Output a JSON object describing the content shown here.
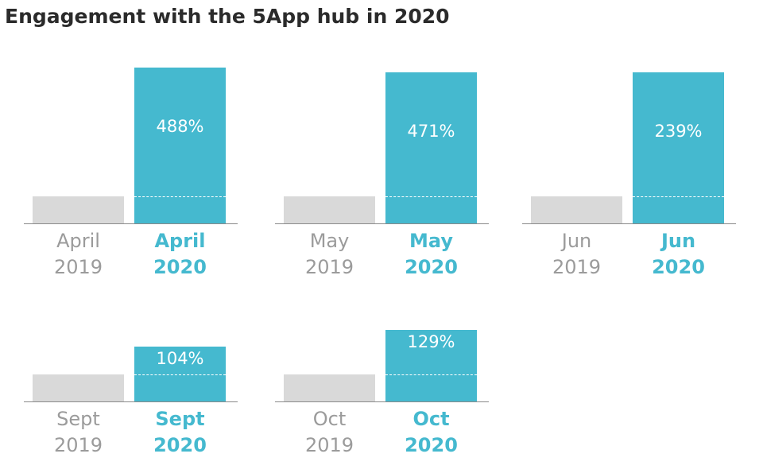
{
  "title": "Engagement with the 5App hub in 2020",
  "colors": {
    "previous": "#d9d9d9",
    "current": "#45b9cf",
    "title": "#2b2b2b",
    "prev_label": "#9b9b9b"
  },
  "chart_data": [
    {
      "type": "bar",
      "title": "",
      "categories": [
        "April 2019",
        "April 2020"
      ],
      "month": "April",
      "prev_year": "2019",
      "curr_year": "2020",
      "value_label": "488%",
      "values": [
        100,
        488
      ],
      "grid": false
    },
    {
      "type": "bar",
      "title": "",
      "categories": [
        "May 2019",
        "May 2020"
      ],
      "month": "May",
      "prev_year": "2019",
      "curr_year": "2020",
      "value_label": "471%",
      "values": [
        100,
        471
      ],
      "grid": false
    },
    {
      "type": "bar",
      "title": "",
      "categories": [
        "Jun 2019",
        "Jun 2020"
      ],
      "month": "Jun",
      "prev_year": "2019",
      "curr_year": "2020",
      "value_label": "239%",
      "values": [
        100,
        239
      ],
      "grid": false
    },
    {
      "type": "bar",
      "title": "",
      "categories": [
        "Sept 2019",
        "Sept 2020"
      ],
      "month": "Sept",
      "prev_year": "2019",
      "curr_year": "2020",
      "value_label": "104%",
      "values": [
        100,
        104
      ],
      "grid": false
    },
    {
      "type": "bar",
      "title": "",
      "categories": [
        "Oct 2019",
        "Oct 2020"
      ],
      "month": "Oct",
      "prev_year": "2019",
      "curr_year": "2020",
      "value_label": "129%",
      "values": [
        100,
        129
      ],
      "grid": false
    }
  ]
}
